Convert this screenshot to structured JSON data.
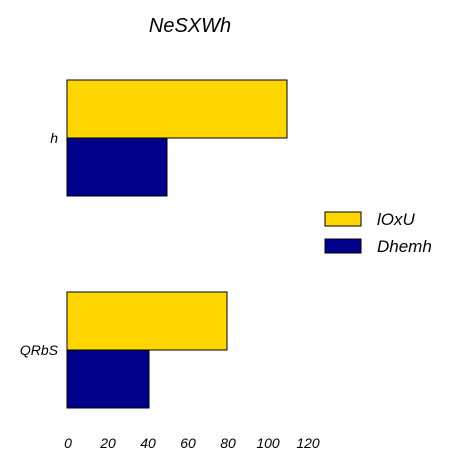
{
  "chart_data": {
    "type": "bar",
    "orientation": "horizontal",
    "title": "NeSXWh",
    "xlabel": "",
    "ylabel": "",
    "categories": [
      "h",
      "QRbS"
    ],
    "series": [
      {
        "name": "lOxU",
        "values": [
          110,
          80
        ],
        "color": "#FFD600"
      },
      {
        "name": "Dhemh",
        "values": [
          50,
          41
        ],
        "color": "#00008B"
      }
    ],
    "xlim": [
      0,
      120
    ],
    "xticks": [
      "0",
      "20",
      "40",
      "60",
      "80",
      "100",
      "120"
    ],
    "grid": false,
    "legend_position": "right"
  }
}
